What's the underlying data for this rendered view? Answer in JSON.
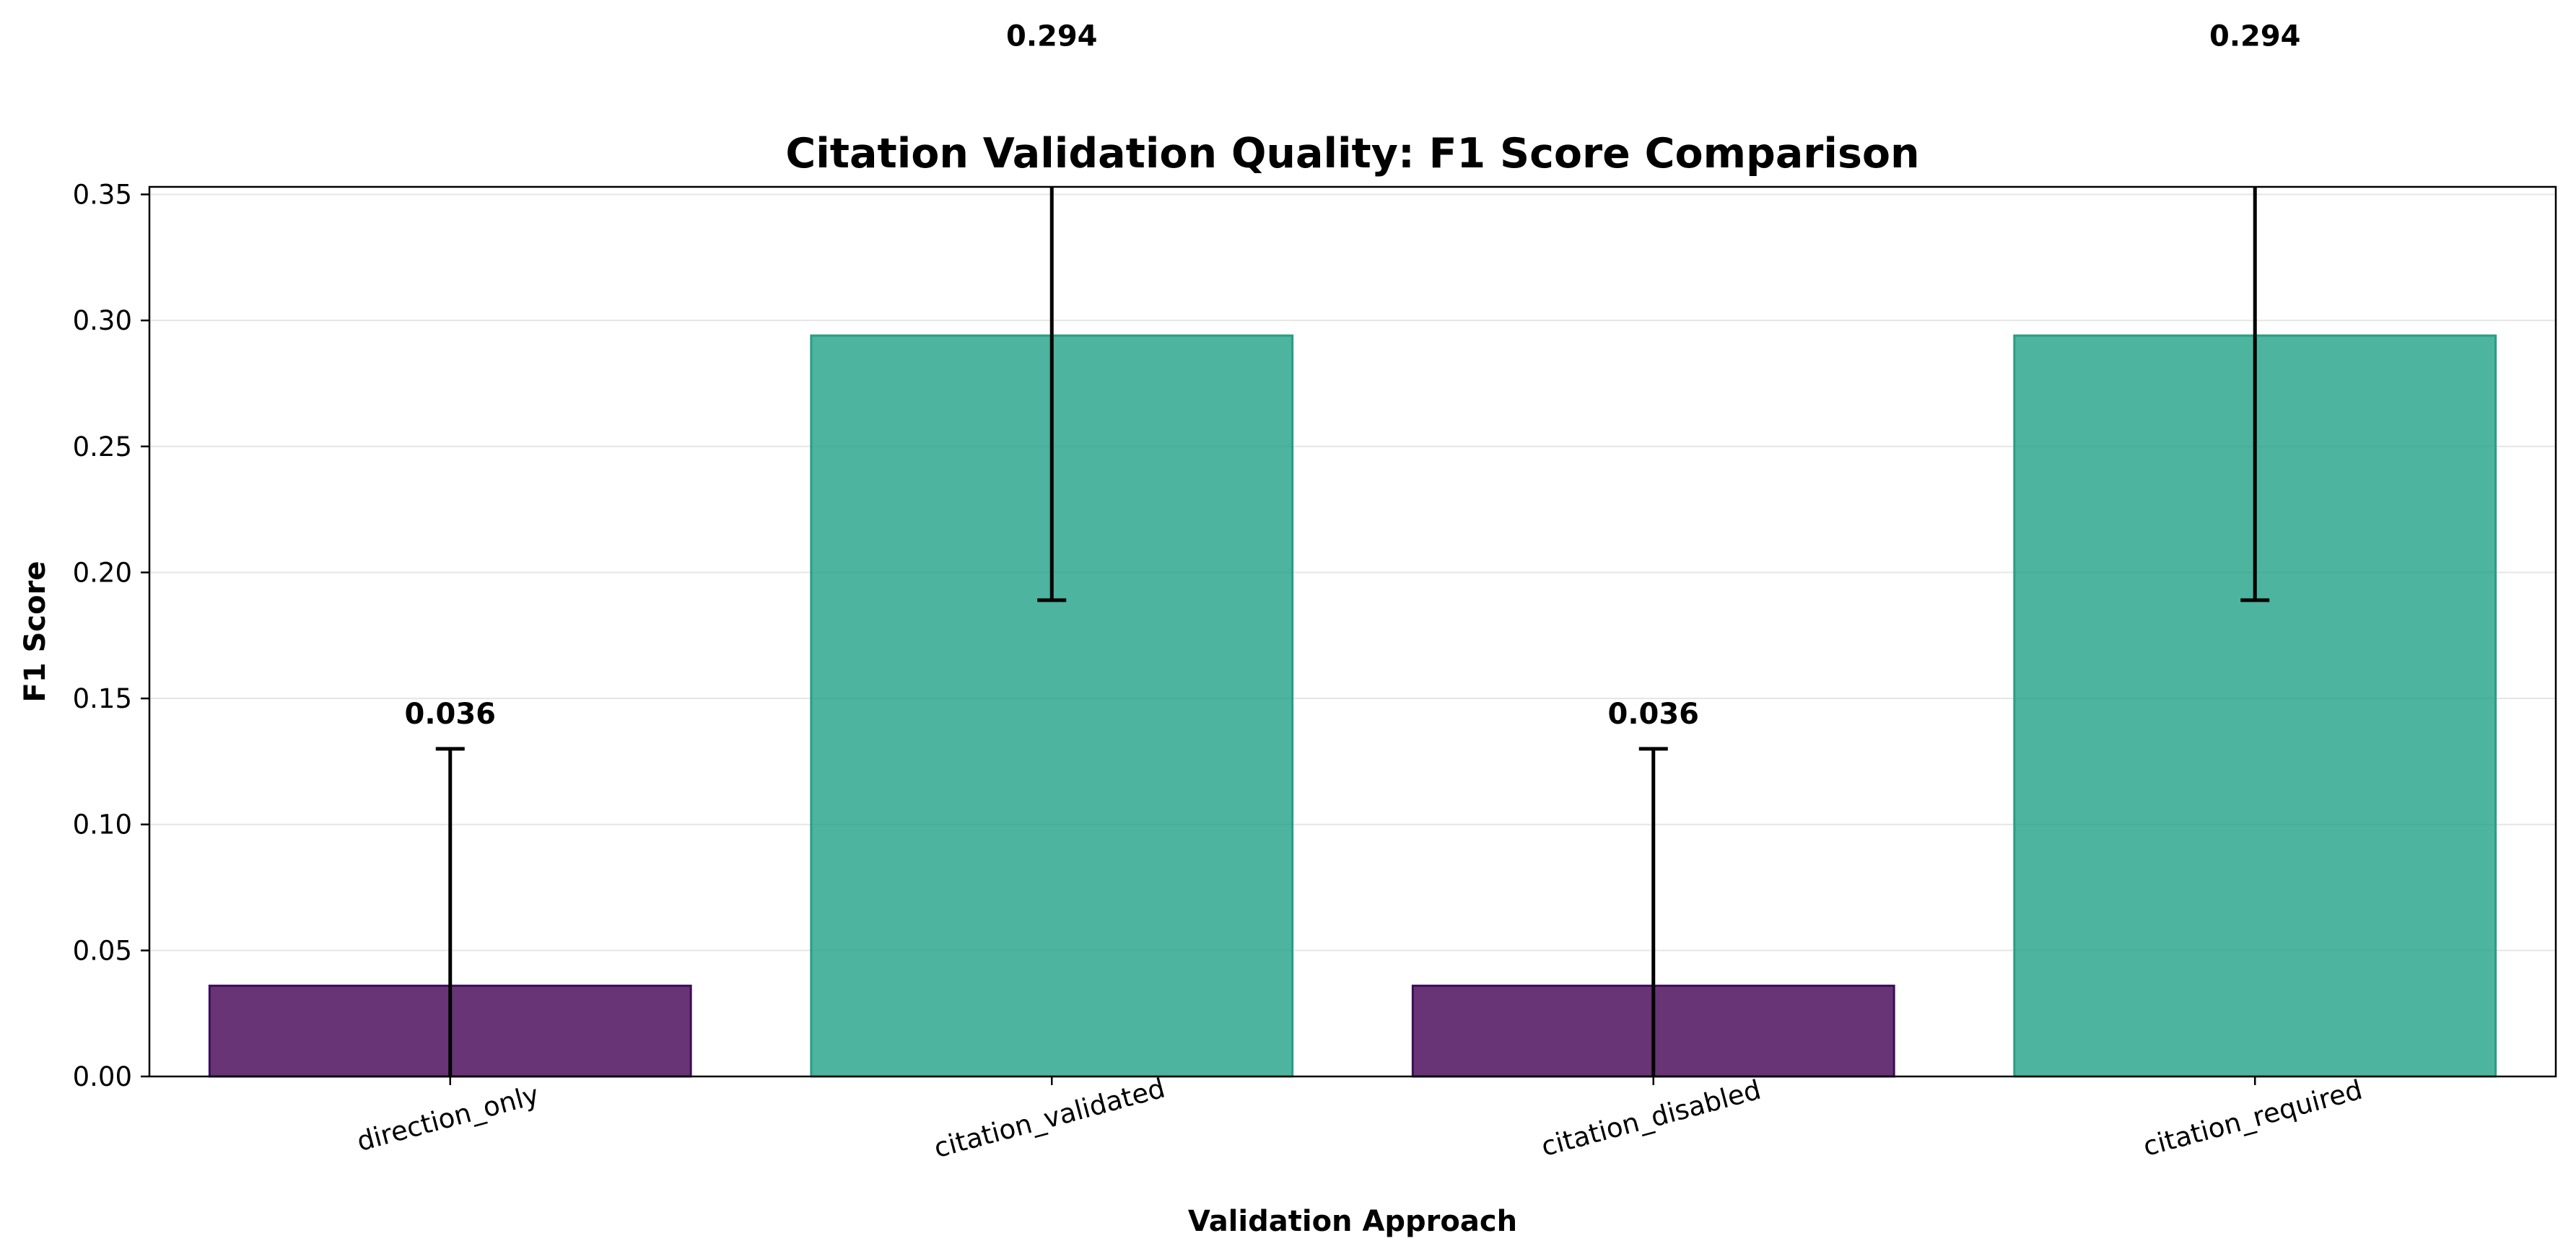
{
  "chart_data": {
    "type": "bar",
    "title": "Citation Validation Quality: F1 Score Comparison",
    "xlabel": "Validation Approach",
    "ylabel": "F1 Score",
    "ylim": [
      0,
      0.353
    ],
    "yticks": [
      "0.00",
      "0.05",
      "0.10",
      "0.15",
      "0.20",
      "0.25",
      "0.30",
      "0.35"
    ],
    "grid": "horizontal",
    "categories": [
      "direction_only",
      "citation_validated",
      "citation_disabled",
      "citation_required"
    ],
    "values": [
      0.036,
      0.294,
      0.036,
      0.294
    ],
    "value_labels": [
      "0.036",
      "0.294",
      "0.036",
      "0.294"
    ],
    "error": [
      0.094,
      0.105,
      0.094,
      0.105
    ],
    "bar_colors": [
      "#440154",
      "#1fa187",
      "#440154",
      "#1fa187"
    ],
    "bar_edge_colors": [
      "#3b0f57",
      "#2a9d83",
      "#3b0f57",
      "#2a9d83"
    ]
  }
}
